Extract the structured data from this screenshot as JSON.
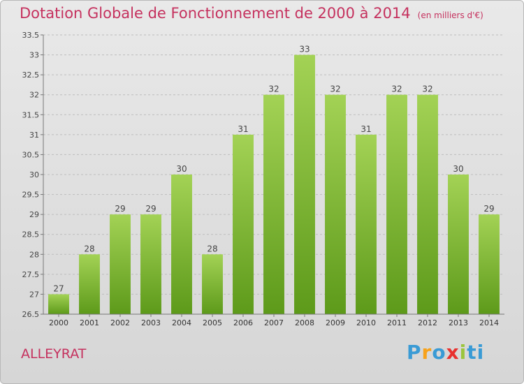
{
  "header": {
    "title": "Dotation Globale de Fonctionnement de 2000 à 2014",
    "unit": "(en milliers d'€)"
  },
  "footer": {
    "commune": "ALLEYRAT",
    "logo_text": "Proxiti",
    "logo_letters": [
      "P",
      "r",
      "o",
      "x",
      "i",
      "ti"
    ]
  },
  "colors": {
    "title": "#c5315e",
    "bar_top": "#a3d255",
    "bar_bottom": "#5d9a1a",
    "grid": "#bdbdbd",
    "axis": "#777777"
  },
  "chart_data": {
    "type": "bar",
    "title": "Dotation Globale de Fonctionnement de 2000 à 2014",
    "subtitle": "(en milliers d'€)",
    "xlabel": "",
    "ylabel": "",
    "categories": [
      "2000",
      "2001",
      "2002",
      "2003",
      "2004",
      "2005",
      "2006",
      "2007",
      "2008",
      "2009",
      "2010",
      "2011",
      "2012",
      "2013",
      "2014"
    ],
    "values": [
      27,
      28,
      29,
      29,
      30,
      28,
      31,
      32,
      33,
      32,
      31,
      32,
      32,
      30,
      29
    ],
    "ylim": [
      26.5,
      33.5
    ],
    "yticks": [
      "26.5",
      "27",
      "27.5",
      "28",
      "28.5",
      "29",
      "29.5",
      "30",
      "30.5",
      "31",
      "31.5",
      "32",
      "32.5",
      "33",
      "33.5"
    ],
    "grid": true,
    "legend": "none"
  }
}
